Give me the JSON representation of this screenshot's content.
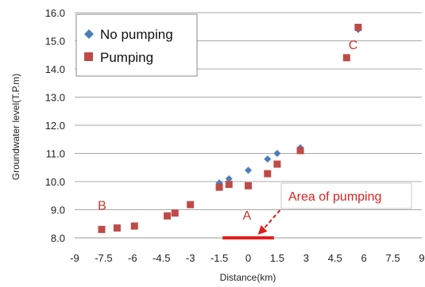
{
  "chart_data": {
    "type": "scatter",
    "title": "",
    "xlabel": "Distance(km)",
    "ylabel": "Groundwater level(T.P.m)",
    "xlim": [
      -9,
      9
    ],
    "ylim": [
      8.0,
      16.0
    ],
    "xticks": [
      "-9",
      "-7.5",
      "-6",
      "-4.5",
      "-3",
      "-1.5",
      "0",
      "1.5",
      "3",
      "4.5",
      "6",
      "7.5",
      "9"
    ],
    "yticks": [
      "8.0",
      "9.0",
      "10.0",
      "11.0",
      "12.0",
      "13.0",
      "14.0",
      "15.0",
      "16.0"
    ],
    "grid": "horizontal",
    "legend_position": "top-left",
    "series": [
      {
        "name": "No pumping",
        "marker": "diamond",
        "color": "#4a7ebb",
        "points": [
          {
            "x": -1.5,
            "y": 9.95
          },
          {
            "x": -1.0,
            "y": 10.1
          },
          {
            "x": 0.0,
            "y": 10.4
          },
          {
            "x": 1.0,
            "y": 10.8
          },
          {
            "x": 1.5,
            "y": 11.0
          },
          {
            "x": 2.7,
            "y": 11.2
          },
          {
            "x": 5.7,
            "y": 15.4
          }
        ]
      },
      {
        "name": "Pumping",
        "marker": "square",
        "color": "#be4b48",
        "points": [
          {
            "x": -7.6,
            "y": 8.3
          },
          {
            "x": -6.8,
            "y": 8.35
          },
          {
            "x": -5.9,
            "y": 8.42
          },
          {
            "x": -4.2,
            "y": 8.78
          },
          {
            "x": -3.8,
            "y": 8.88
          },
          {
            "x": -3.0,
            "y": 9.18
          },
          {
            "x": -1.5,
            "y": 9.8
          },
          {
            "x": -1.0,
            "y": 9.9
          },
          {
            "x": 0.0,
            "y": 9.85
          },
          {
            "x": 1.0,
            "y": 10.28
          },
          {
            "x": 1.5,
            "y": 10.62
          },
          {
            "x": 2.7,
            "y": 11.1
          },
          {
            "x": 5.1,
            "y": 14.4
          },
          {
            "x": 5.7,
            "y": 15.48
          }
        ]
      }
    ],
    "annotations": {
      "label_a": "A",
      "label_b": "B",
      "label_c": "C",
      "area_label": "Area of pumping",
      "annotation_color": "#e02020",
      "pumping_area_x": [
        -1.0,
        1.0
      ],
      "pumping_area_y": 8.0
    }
  }
}
